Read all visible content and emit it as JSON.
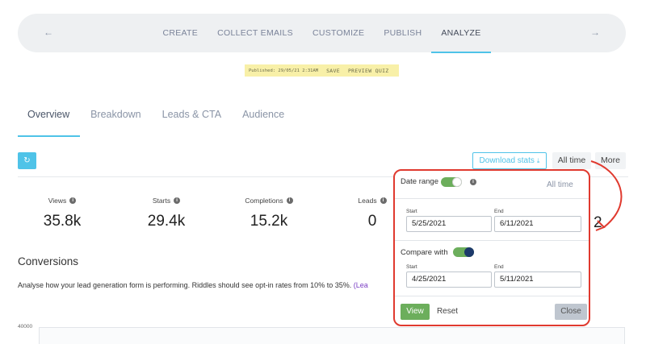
{
  "topnav": {
    "items": [
      "CREATE",
      "COLLECT EMAILS",
      "CUSTOMIZE",
      "PUBLISH",
      "ANALYZE"
    ],
    "active": "ANALYZE",
    "back_icon": "arrow-left-icon",
    "forward_icon": "arrow-right-icon"
  },
  "published_strip": {
    "published": "Published: 29/05/21 2:31AM",
    "save": "SAVE",
    "preview": "PREVIEW QUIZ"
  },
  "tabs": [
    "Overview",
    "Breakdown",
    "Leads & CTA",
    "Audience"
  ],
  "toolbar": {
    "refresh_icon": "refresh-icon",
    "download_label": "Download stats",
    "download_icon": "download-icon",
    "all_time": "All time",
    "more": "More"
  },
  "stats": [
    {
      "label": "Views",
      "value": "35.8k"
    },
    {
      "label": "Starts",
      "value": "29.4k"
    },
    {
      "label": "Completions",
      "value": "15.2k"
    },
    {
      "label": "Leads",
      "value": "0"
    }
  ],
  "stats_partial_value": "2",
  "conversions": {
    "title": "Conversions",
    "description": "Analyse how your lead generation form is performing. Riddles should see opt-in rates from 10% to 35%.",
    "link": "(Lea"
  },
  "chart": {
    "y_top_label": "40000"
  },
  "date_popup": {
    "date_range_label": "Date range",
    "all_time": "All time",
    "start_label": "Start",
    "end_label": "End",
    "start_value": "5/25/2021",
    "end_value": "6/11/2021",
    "compare_label": "Compare with",
    "compare_start_label": "Start",
    "compare_end_label": "End",
    "compare_start_value": "4/25/2021",
    "compare_end_value": "5/11/2021",
    "view": "View",
    "reset": "Reset",
    "close": "Close"
  },
  "colors": {
    "accent": "#4fc3e8",
    "toggle_on": "#6cae5c",
    "highlight": "#e03a2f",
    "publish_strip": "#f8f0a8"
  }
}
